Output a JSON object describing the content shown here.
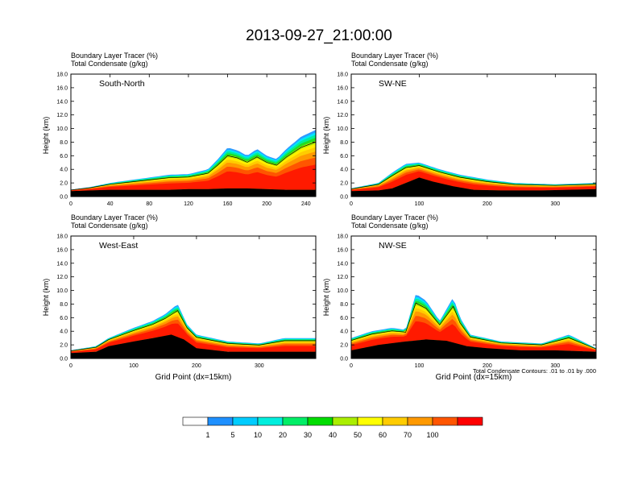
{
  "figure": {
    "title": "2013-09-27_21:00:00",
    "footnote": "Total Condensate Contours: .01 to .01 by .000"
  },
  "chart_data": [
    {
      "type": "heatmap",
      "panel_label": "South-North",
      "header_lines": [
        "Boundary Layer Tracer   (%)",
        "Total Condensate   (g/kg)"
      ],
      "xlabel": "",
      "ylabel": "Height (km)",
      "xlim": [
        0,
        250
      ],
      "ylim": [
        0,
        18
      ],
      "x_ticks": [
        "0",
        "40",
        "80",
        "120",
        "160",
        "200",
        "240"
      ],
      "y_ticks": [
        "0.0",
        "2.0",
        "4.0",
        "6.0",
        "8.0",
        "10.0",
        "12.0",
        "14.0",
        "16.0",
        "18.0"
      ],
      "marker_x": 125,
      "surface": [
        [
          0,
          0.8
        ],
        [
          20,
          0.9
        ],
        [
          40,
          1.0
        ],
        [
          60,
          1.0
        ],
        [
          80,
          1.0
        ],
        [
          100,
          1.0
        ],
        [
          120,
          1.1
        ],
        [
          140,
          1.1
        ],
        [
          160,
          1.2
        ],
        [
          180,
          1.2
        ],
        [
          200,
          1.1
        ],
        [
          220,
          1.0
        ],
        [
          250,
          1.0
        ]
      ],
      "tracer_top": [
        [
          0,
          1.0
        ],
        [
          20,
          1.4
        ],
        [
          40,
          2.0
        ],
        [
          60,
          2.4
        ],
        [
          80,
          2.8
        ],
        [
          100,
          3.2
        ],
        [
          120,
          3.3
        ],
        [
          140,
          4.0
        ],
        [
          150,
          5.5
        ],
        [
          160,
          7.2
        ],
        [
          170,
          6.8
        ],
        [
          180,
          6.0
        ],
        [
          190,
          7.0
        ],
        [
          200,
          6.0
        ],
        [
          210,
          5.5
        ],
        [
          220,
          7.0
        ],
        [
          235,
          8.8
        ],
        [
          250,
          9.8
        ]
      ]
    },
    {
      "type": "heatmap",
      "panel_label": "SW-NE",
      "header_lines": [
        "Boundary Layer Tracer   (%)",
        "Total Condensate   (g/kg)"
      ],
      "xlabel": "",
      "ylabel": "Height (km)",
      "xlim": [
        0,
        360
      ],
      "ylim": [
        0,
        18
      ],
      "x_ticks": [
        "0",
        "100",
        "200",
        "300"
      ],
      "y_ticks": [
        "0.0",
        "2.0",
        "4.0",
        "6.0",
        "8.0",
        "10.0",
        "12.0",
        "14.0",
        "16.0",
        "18.0"
      ],
      "marker_x": 178,
      "surface": [
        [
          0,
          0.8
        ],
        [
          40,
          0.9
        ],
        [
          60,
          1.2
        ],
        [
          80,
          2.0
        ],
        [
          100,
          2.8
        ],
        [
          120,
          2.2
        ],
        [
          150,
          1.5
        ],
        [
          180,
          1.0
        ],
        [
          220,
          0.9
        ],
        [
          280,
          0.9
        ],
        [
          360,
          1.1
        ]
      ],
      "tracer_top": [
        [
          0,
          1.2
        ],
        [
          40,
          2.0
        ],
        [
          60,
          3.5
        ],
        [
          80,
          4.8
        ],
        [
          100,
          5.0
        ],
        [
          130,
          4.0
        ],
        [
          160,
          3.2
        ],
        [
          200,
          2.5
        ],
        [
          240,
          2.0
        ],
        [
          300,
          1.8
        ],
        [
          360,
          2.0
        ]
      ]
    },
    {
      "type": "heatmap",
      "panel_label": "West-East",
      "header_lines": [
        "Boundary Layer Tracer   (%)",
        "Total Condensate   (g/kg)"
      ],
      "xlabel": "Grid Point (dx=15km)",
      "ylabel": "Height (km)",
      "xlim": [
        0,
        390
      ],
      "ylim": [
        0,
        18
      ],
      "x_ticks": [
        "0",
        "100",
        "200",
        "300"
      ],
      "y_ticks": [
        "0.0",
        "2.0",
        "4.0",
        "6.0",
        "8.0",
        "10.0",
        "12.0",
        "14.0",
        "16.0",
        "18.0"
      ],
      "marker_x": 195,
      "surface": [
        [
          0,
          0.8
        ],
        [
          40,
          1.0
        ],
        [
          60,
          1.8
        ],
        [
          100,
          2.5
        ],
        [
          130,
          3.0
        ],
        [
          160,
          3.5
        ],
        [
          180,
          2.8
        ],
        [
          200,
          1.5
        ],
        [
          250,
          1.0
        ],
        [
          300,
          1.0
        ],
        [
          390,
          1.0
        ]
      ],
      "tracer_top": [
        [
          0,
          1.2
        ],
        [
          40,
          1.8
        ],
        [
          60,
          3.0
        ],
        [
          100,
          4.5
        ],
        [
          130,
          5.5
        ],
        [
          150,
          6.5
        ],
        [
          170,
          8.0
        ],
        [
          185,
          5.0
        ],
        [
          200,
          3.5
        ],
        [
          250,
          2.5
        ],
        [
          300,
          2.2
        ],
        [
          340,
          3.0
        ],
        [
          390,
          3.0
        ]
      ]
    },
    {
      "type": "heatmap",
      "panel_label": "NW-SE",
      "header_lines": [
        "Boundary Layer Tracer   (%)",
        "Total Condensate   (g/kg)"
      ],
      "xlabel": "Grid Point (dx=15km)",
      "ylabel": "Height (km)",
      "xlim": [
        0,
        360
      ],
      "ylim": [
        0,
        18
      ],
      "x_ticks": [
        "0",
        "100",
        "200",
        "300"
      ],
      "y_ticks": [
        "0.0",
        "2.0",
        "4.0",
        "6.0",
        "8.0",
        "10.0",
        "12.0",
        "14.0",
        "16.0",
        "18.0"
      ],
      "marker_x": 178,
      "surface": [
        [
          0,
          1.2
        ],
        [
          40,
          2.0
        ],
        [
          80,
          2.5
        ],
        [
          110,
          2.8
        ],
        [
          140,
          2.6
        ],
        [
          170,
          1.8
        ],
        [
          200,
          1.5
        ],
        [
          250,
          1.2
        ],
        [
          300,
          1.2
        ],
        [
          360,
          1.0
        ]
      ],
      "tracer_top": [
        [
          0,
          3.0
        ],
        [
          30,
          4.0
        ],
        [
          60,
          4.5
        ],
        [
          80,
          4.2
        ],
        [
          95,
          9.5
        ],
        [
          110,
          8.5
        ],
        [
          130,
          5.5
        ],
        [
          150,
          9.0
        ],
        [
          160,
          6.0
        ],
        [
          175,
          3.5
        ],
        [
          220,
          2.5
        ],
        [
          280,
          2.2
        ],
        [
          320,
          3.5
        ],
        [
          340,
          2.5
        ],
        [
          360,
          1.5
        ]
      ]
    }
  ],
  "colorbar": {
    "labels": [
      "1",
      "5",
      "10",
      "20",
      "30",
      "40",
      "50",
      "60",
      "70",
      "100"
    ],
    "colors": [
      "#ffffff",
      "#1e90ff",
      "#00ccff",
      "#00eedd",
      "#00ee66",
      "#00dd00",
      "#aaee00",
      "#ffff00",
      "#ffcc00",
      "#ff9900",
      "#ff5500",
      "#ff0000"
    ]
  }
}
